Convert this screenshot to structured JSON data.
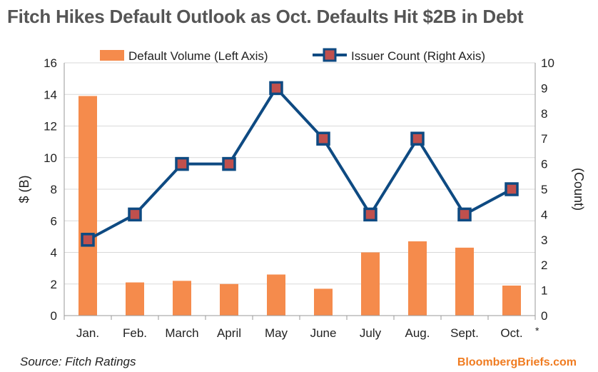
{
  "title": "Fitch Hikes Default Outlook as Oct. Defaults Hit $2B in Debt",
  "source": "Source: Fitch Ratings",
  "brand": "BloombergBriefs.com",
  "footnote_mark": "*",
  "colors": {
    "bar": "#f58b4c",
    "line": "#0e4a82",
    "marker_fill": "#c0504d",
    "grid": "#d9d9d9"
  },
  "chart_data": {
    "type": "bar+line",
    "categories": [
      "Jan.",
      "Feb.",
      "March",
      "April",
      "May",
      "June",
      "July",
      "Aug.",
      "Sept.",
      "Oct."
    ],
    "series": [
      {
        "name": "Default Volume (Left Axis)",
        "type": "bar",
        "axis": "left",
        "values": [
          13.9,
          2.1,
          2.2,
          2.0,
          2.6,
          1.7,
          4.0,
          4.7,
          4.3,
          1.9
        ]
      },
      {
        "name": "Issuer Count (Right Axis)",
        "type": "line",
        "axis": "right",
        "values": [
          3,
          4,
          6,
          6,
          9,
          7,
          4,
          7,
          4,
          5
        ]
      }
    ],
    "ylabel_left": "$ (B)",
    "ylabel_right": "(Count)",
    "ylim_left": [
      0,
      16
    ],
    "ylim_right": [
      0,
      10
    ],
    "yticks_left": [
      "0",
      "2",
      "4",
      "6",
      "8",
      "10",
      "12",
      "14",
      "16"
    ],
    "yticks_right": [
      "0",
      "1",
      "2",
      "3",
      "4",
      "5",
      "6",
      "7",
      "8",
      "9",
      "10"
    ],
    "grid": true,
    "legend": "top"
  }
}
